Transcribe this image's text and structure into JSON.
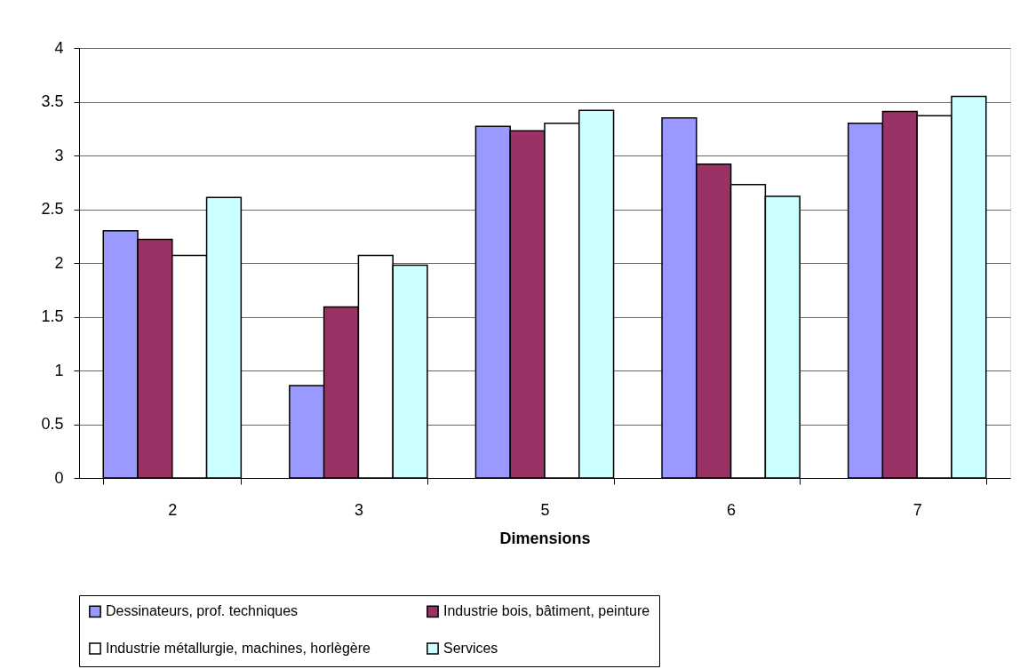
{
  "chart_data": {
    "type": "bar",
    "xlabel": "Dimensions",
    "categories": [
      "2",
      "3",
      "5",
      "6",
      "7"
    ],
    "series": [
      {
        "name": "Dessinateurs, prof. techniques",
        "color": "#9999ff",
        "values": [
          2.3,
          0.86,
          3.27,
          3.35,
          3.3
        ]
      },
      {
        "name": "Industrie bois, bâtiment, peinture",
        "color": "#993366",
        "values": [
          2.22,
          1.59,
          3.23,
          2.92,
          3.41
        ]
      },
      {
        "name": "Industrie métallurgie, machines, horlègère",
        "color": "#ffffff",
        "values": [
          2.07,
          2.07,
          3.3,
          2.73,
          3.37
        ]
      },
      {
        "name": "Services",
        "color": "#ccffff",
        "values": [
          2.61,
          1.98,
          3.42,
          2.62,
          3.55
        ]
      }
    ],
    "ylim": [
      0,
      4
    ],
    "yticks": [
      0,
      0.5,
      1,
      1.5,
      2,
      2.5,
      3,
      3.5,
      4
    ],
    "grid": "y",
    "legend": "bottom"
  }
}
